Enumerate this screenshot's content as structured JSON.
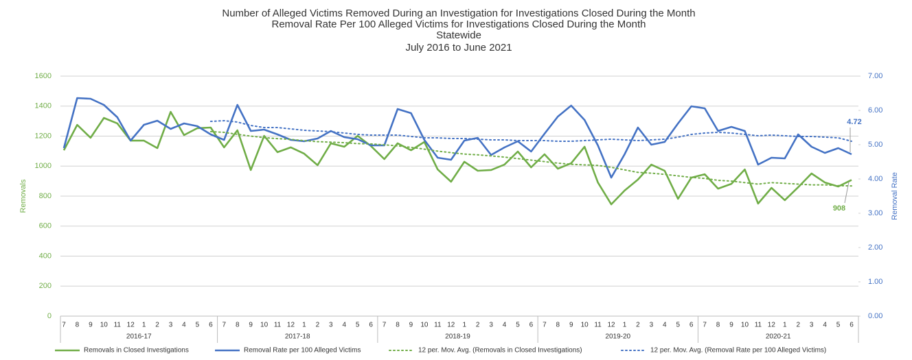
{
  "chart_data": {
    "type": "line",
    "title": [
      "Number of Alleged Victims Removed During an Investigation for Investigations Closed During the Month",
      "Removal Rate Per 100 Alleged Victims for Investigations Closed During the Month",
      "Statewide",
      "July 2016 to June 2021"
    ],
    "y_label": "Removals",
    "y2_label": "Removal Rate",
    "categories": [
      "7",
      "8",
      "9",
      "10",
      "11",
      "12",
      "1",
      "2",
      "3",
      "4",
      "5",
      "6",
      "7",
      "8",
      "9",
      "10",
      "11",
      "12",
      "1",
      "2",
      "3",
      "4",
      "5",
      "6",
      "7",
      "8",
      "9",
      "10",
      "11",
      "12",
      "1",
      "2",
      "3",
      "4",
      "5",
      "6",
      "7",
      "8",
      "9",
      "10",
      "11",
      "12",
      "1",
      "2",
      "3",
      "4",
      "5",
      "6",
      "7",
      "8",
      "9",
      "10",
      "11",
      "12",
      "1",
      "2",
      "3",
      "4",
      "5",
      "6"
    ],
    "category_groups": [
      "2016-17",
      "2017-18",
      "2018-19",
      "2019-20",
      "2020-21"
    ],
    "ylim": [
      0,
      1600
    ],
    "yticks": [
      0,
      200,
      400,
      600,
      800,
      1000,
      1200,
      1400,
      1600
    ],
    "y2lim": [
      0,
      7
    ],
    "y2ticks": [
      {
        "value": 0,
        "label": "0.00"
      },
      {
        "value": 1,
        "label": "1.00"
      },
      {
        "value": 2,
        "label": "2.00"
      },
      {
        "value": 3,
        "label": "3.00"
      },
      {
        "value": 4,
        "label": "4.00"
      },
      {
        "value": 5,
        "label": "5.00"
      },
      {
        "value": 6,
        "label": "6.00"
      },
      {
        "value": 7,
        "label": "7.00"
      }
    ],
    "grid": true,
    "legend": "bottom",
    "series": [
      {
        "name": "Removals in Closed Investigations",
        "color": "#70ad47",
        "dashed": false,
        "values": [
          1106,
          1275,
          1189,
          1321,
          1285,
          1170,
          1170,
          1120,
          1362,
          1207,
          1253,
          1257,
          1125,
          1239,
          974,
          1202,
          1093,
          1125,
          1083,
          1006,
          1152,
          1129,
          1202,
          1134,
          1047,
          1152,
          1106,
          1161,
          978,
          896,
          1029,
          969,
          974,
          1010,
          1097,
          992,
          1079,
          983,
          1019,
          1129,
          891,
          745,
          837,
          910,
          1010,
          969,
          782,
          923,
          946,
          850,
          882,
          978,
          750,
          855,
          773,
          859,
          951,
          891,
          864,
          908
        ]
      },
      {
        "name": "Removal Rate per 100 Alleged Victims",
        "color": "#4472c4",
        "dashed": false,
        "axis": "y2",
        "values": [
          4.9,
          6.36,
          6.34,
          6.16,
          5.8,
          5.12,
          5.58,
          5.7,
          5.46,
          5.62,
          5.54,
          5.3,
          5.14,
          6.16,
          5.4,
          5.44,
          5.3,
          5.14,
          5.1,
          5.18,
          5.4,
          5.22,
          5.16,
          4.98,
          4.98,
          6.04,
          5.92,
          5.14,
          4.62,
          4.56,
          5.12,
          5.2,
          4.7,
          4.92,
          5.1,
          4.8,
          5.32,
          5.82,
          6.14,
          5.72,
          4.98,
          4.04,
          4.72,
          5.5,
          5.0,
          5.08,
          5.62,
          6.12,
          6.06,
          5.4,
          5.52,
          5.4,
          4.42,
          4.62,
          4.6,
          5.3,
          4.94,
          4.76,
          4.9,
          4.72
        ]
      },
      {
        "name": "12 per. Mov. Avg. (Removals in Closed Investigations)",
        "color": "#70ad47",
        "dashed": true,
        "values": [
          null,
          null,
          null,
          null,
          null,
          null,
          null,
          null,
          null,
          null,
          null,
          1230,
          1225,
          1212,
          1200,
          1190,
          1183,
          1178,
          1170,
          1163,
          1160,
          1156,
          1150,
          1148,
          1142,
          1135,
          1125,
          1113,
          1100,
          1090,
          1080,
          1075,
          1068,
          1060,
          1050,
          1040,
          1030,
          1020,
          1012,
          1008,
          1005,
          992,
          975,
          958,
          953,
          945,
          935,
          925,
          918,
          905,
          900,
          890,
          880,
          890,
          885,
          880,
          875,
          875,
          870,
          868
        ]
      },
      {
        "name": "12 per. Mov. Avg. (Removal Rate per 100 Alleged Victims)",
        "color": "#4472c4",
        "dashed": true,
        "axis": "y2",
        "values": [
          null,
          null,
          null,
          null,
          null,
          null,
          null,
          null,
          null,
          null,
          null,
          5.68,
          5.7,
          5.66,
          5.56,
          5.5,
          5.5,
          5.46,
          5.42,
          5.4,
          5.38,
          5.34,
          5.3,
          5.28,
          5.28,
          5.28,
          5.24,
          5.2,
          5.2,
          5.18,
          5.18,
          5.16,
          5.14,
          5.14,
          5.12,
          5.12,
          5.12,
          5.1,
          5.1,
          5.12,
          5.14,
          5.16,
          5.14,
          5.12,
          5.14,
          5.16,
          5.22,
          5.3,
          5.34,
          5.36,
          5.34,
          5.3,
          5.26,
          5.28,
          5.26,
          5.24,
          5.24,
          5.22,
          5.2,
          5.1
        ]
      }
    ]
  }
}
